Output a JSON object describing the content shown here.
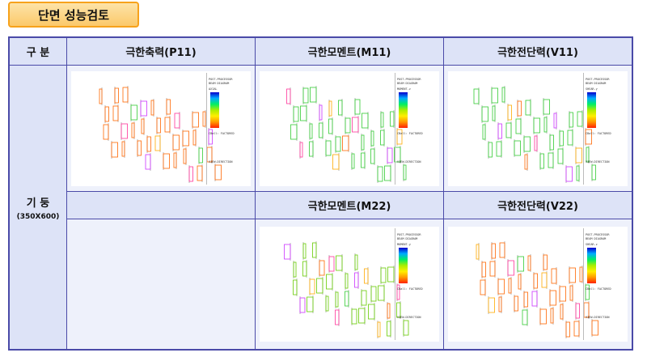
{
  "title": "단면 성능검토",
  "table": {
    "header": [
      "구 분",
      "극한축력(P11)",
      "극한모멘트(M11)",
      "극한전단력(V11)"
    ],
    "row_label": "기 둥",
    "row_sublabel": "(350X600)",
    "second_header": [
      "",
      "극한모멘트(M22)",
      "극한전단력(V22)"
    ]
  },
  "diagrams": [
    {
      "id": "p11",
      "program": "POST-PROCESSOR",
      "diagram": "BEAM DIAGRAM",
      "component": "AXIAL",
      "load": "CBall: FACTORED",
      "view": "VIEW-DIRECTION",
      "color": "#ff6600"
    },
    {
      "id": "m11",
      "program": "POST-PROCESSOR",
      "diagram": "BEAM DIAGRAM",
      "component": "MOMENT-z",
      "load": "CBall: FACTORED",
      "view": "VIEW-DIRECTION",
      "color": "#33cc33"
    },
    {
      "id": "v11",
      "program": "POST-PROCESSOR",
      "diagram": "BEAM DIAGRAM",
      "component": "SHEAR-y",
      "load": "CBall: FACTORED",
      "view": "VIEW-DIRECTION",
      "color": "#33cc33"
    },
    {
      "id": "m22",
      "program": "POST-PROCESSOR",
      "diagram": "BEAM DIAGRAM",
      "component": "MOMENT-y",
      "load": "CBall: FACTORED",
      "view": "VIEW-DIRECTION",
      "color": "#66cc00"
    },
    {
      "id": "v22",
      "program": "POST-PROCESSOR",
      "diagram": "BEAM DIAGRAM",
      "component": "SHEAR-z",
      "load": "CBall: FACTORED",
      "view": "VIEW-DIRECTION",
      "color": "#ff6600"
    }
  ]
}
